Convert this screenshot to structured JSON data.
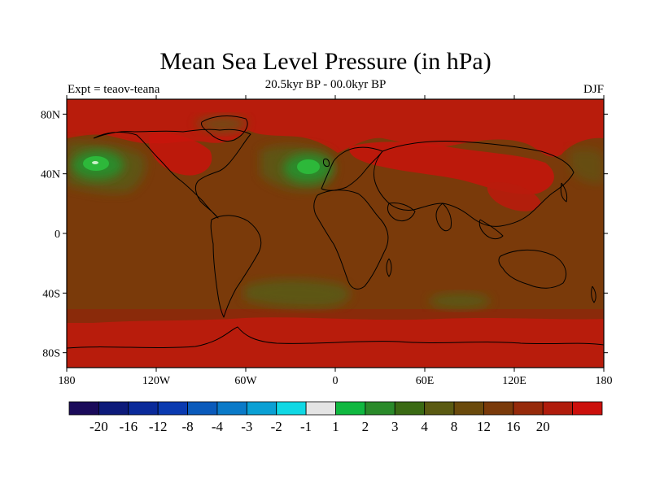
{
  "map": {
    "title": "Mean Sea Level Pressure (in hPa)",
    "left_label": "Expt = teaov-teana",
    "center_label": "20.5kyr BP - 00.0kyr BP",
    "right_label": "DJF",
    "projection": "cylindrical-equidistant",
    "lon_range": [
      -180,
      180
    ],
    "lat_range": [
      -90,
      90
    ],
    "x_ticks": [
      {
        "value": -180,
        "label": "180"
      },
      {
        "value": -120,
        "label": "120W"
      },
      {
        "value": -60,
        "label": "60W"
      },
      {
        "value": 0,
        "label": "0"
      },
      {
        "value": 60,
        "label": "60E"
      },
      {
        "value": 120,
        "label": "120E"
      },
      {
        "value": 180,
        "label": "180"
      }
    ],
    "y_ticks": [
      {
        "value": 80,
        "label": "80N"
      },
      {
        "value": 40,
        "label": "40N"
      },
      {
        "value": 0,
        "label": "0"
      },
      {
        "value": -40,
        "label": "40S"
      },
      {
        "value": -80,
        "label": "80S"
      }
    ],
    "background_color": "#7a3a0a",
    "regions": [
      {
        "name": "arctic-high",
        "lon": [
          -180,
          180
        ],
        "lat": [
          62,
          90
        ],
        "color": "#b81c0c"
      },
      {
        "name": "antarctic-high",
        "lon": [
          -180,
          180
        ],
        "lat": [
          -90,
          -58
        ],
        "color": "#b81c0c"
      },
      {
        "name": "southern-ocean-band",
        "lon": [
          -180,
          180
        ],
        "lat": [
          -60,
          -50
        ],
        "color": "#8a2a0a"
      },
      {
        "name": "north-pacific-anomaly",
        "center": [
          -165,
          46
        ],
        "color": "#2db83a"
      },
      {
        "name": "north-atlantic-anomaly",
        "center": [
          -18,
          45
        ],
        "color": "#2db83a"
      },
      {
        "name": "south-atlantic-anomaly",
        "center": [
          -20,
          -37
        ],
        "color": "#5a5a12"
      },
      {
        "name": "south-indian-anomaly",
        "center": [
          75,
          -42
        ],
        "color": "#5a5a12"
      }
    ]
  },
  "colorbar": {
    "colors": [
      "#1a0a5a",
      "#0d1a7a",
      "#0a2a9a",
      "#0a3ab0",
      "#0a5abb",
      "#0a7ac8",
      "#0aa0d4",
      "#10d8e4",
      "#e4e4e4",
      "#10b840",
      "#2a8a2a",
      "#3a6a14",
      "#5a5a12",
      "#6a4a0c",
      "#7a3a0a",
      "#962a0a",
      "#b01c0c",
      "#cc100c"
    ],
    "labels": [
      "-20",
      "-16",
      "-12",
      "-8",
      "-4",
      "-3",
      "-2",
      "-1",
      "1",
      "2",
      "3",
      "4",
      "8",
      "12",
      "16",
      "20"
    ]
  }
}
